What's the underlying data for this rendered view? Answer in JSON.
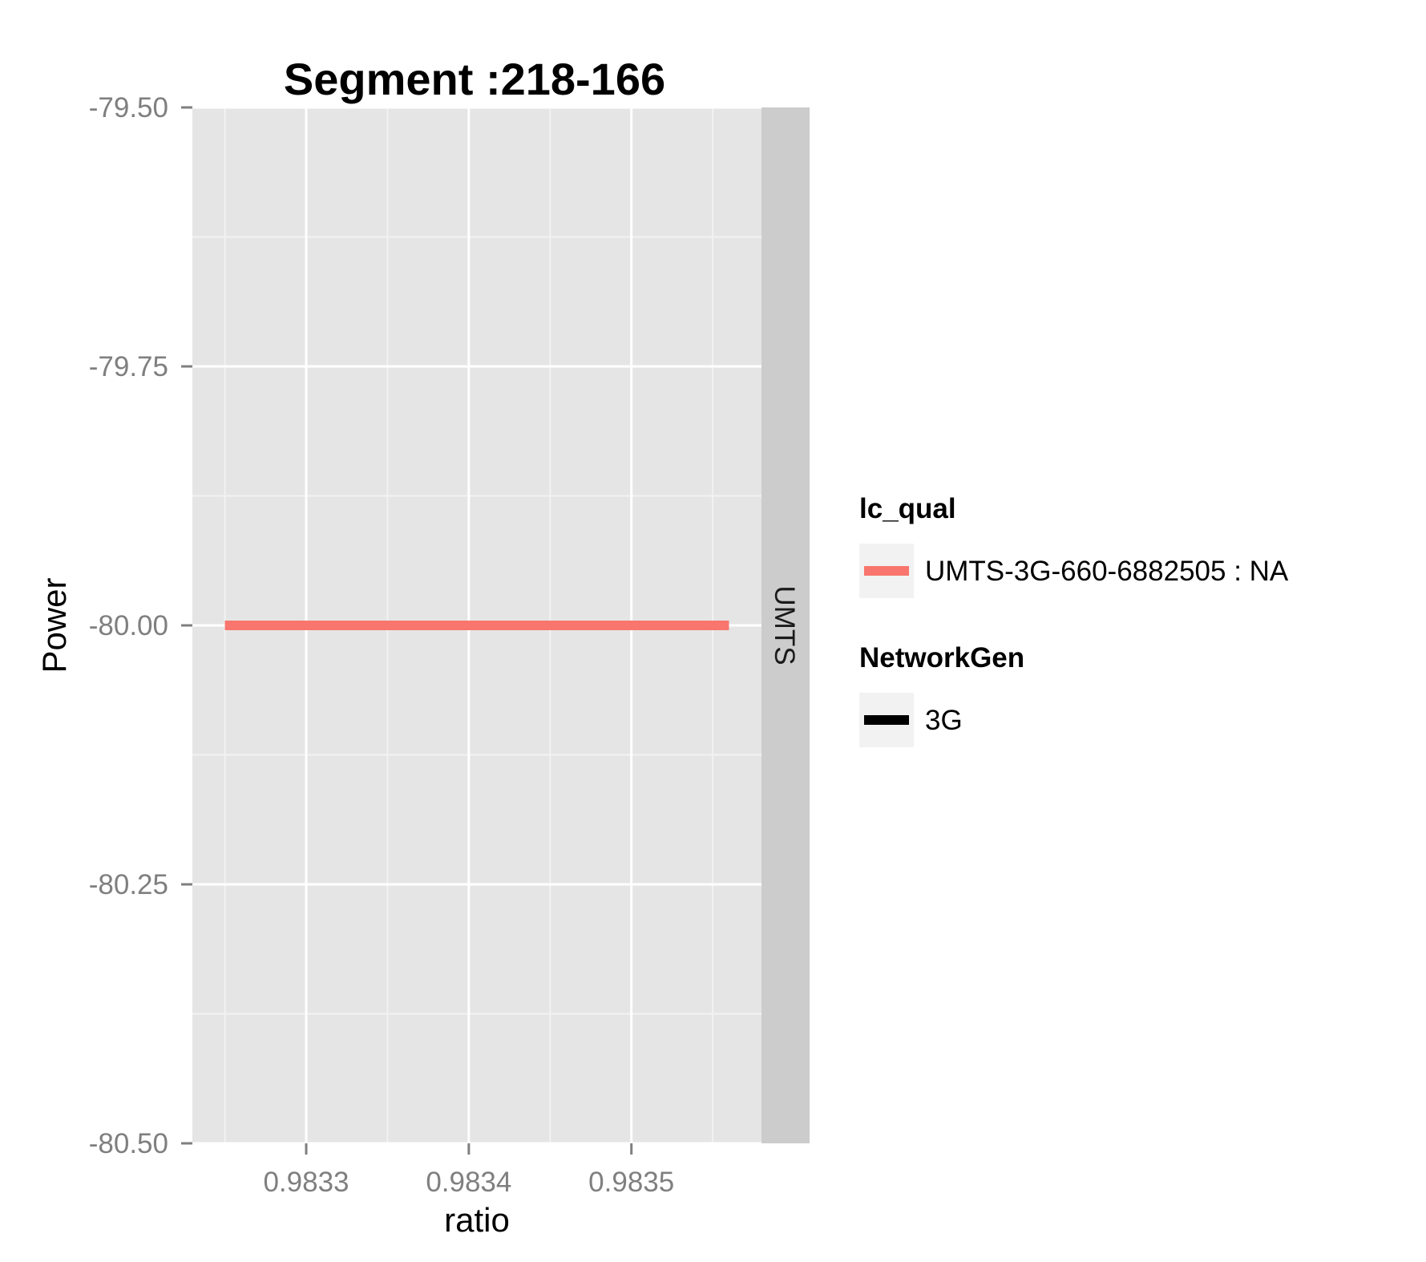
{
  "chart_data": {
    "type": "line",
    "title": "Segment :218-166",
    "xlabel": "ratio",
    "ylabel": "Power",
    "xlim": [
      0.98323,
      0.98358
    ],
    "ylim": [
      -80.5,
      -79.5
    ],
    "x_ticks": [
      "0.9833",
      "0.9834",
      "0.9835"
    ],
    "x_tick_values": [
      0.9833,
      0.9834,
      0.9835
    ],
    "y_ticks": [
      "-79.50",
      "-79.75",
      "-80.00",
      "-80.25",
      "-80.50"
    ],
    "y_tick_values": [
      -79.5,
      -79.75,
      -80.0,
      -80.25,
      -80.5
    ],
    "grid": true,
    "facet_strip": "UMTS",
    "series": [
      {
        "name": "UMTS-3G-660-6882505 : NA",
        "color": "#F8766D",
        "x": [
          0.98325,
          0.98356
        ],
        "y": [
          -80.0,
          -80.0
        ]
      }
    ],
    "legends": [
      {
        "title": "lc_qual",
        "entries": [
          {
            "label": "UMTS-3G-660-6882505 : NA",
            "color": "#F8766D"
          }
        ]
      },
      {
        "title": "NetworkGen",
        "entries": [
          {
            "label": "3G",
            "color": "#000000"
          }
        ]
      }
    ],
    "legend_position": "right"
  }
}
